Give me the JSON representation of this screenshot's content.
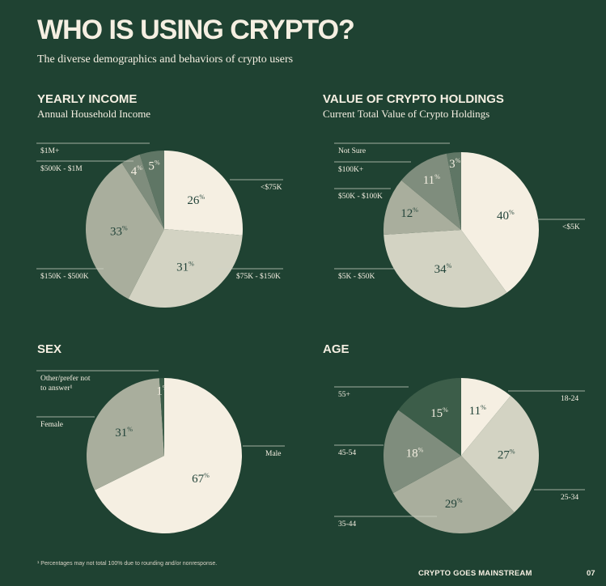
{
  "page": {
    "title": "WHO IS USING CRYPTO?",
    "subtitle": "The diverse demographics and behaviors of crypto users",
    "footnote": "¹ Percentages may not total 100% due to rounding and/or nonresponse.",
    "brand": "CRYPTO GOES MAINSTREAM",
    "page_number": "07"
  },
  "colors": {
    "background": "#1f4232",
    "cream": "#f5efe2",
    "light": "#d3d3c3",
    "mid": "#a9ae9d",
    "dark": "#7f8d7d",
    "darker": "#5f7665",
    "darkest": "#3c5d49",
    "value_text": "#23443a"
  },
  "chart_data": [
    {
      "id": "income",
      "type": "pie",
      "title": "YEARLY INCOME",
      "subtitle": "Annual Household Income",
      "slices": [
        {
          "label": "<$75K",
          "value": 26
        },
        {
          "label": "$75K - $150K",
          "value": 31
        },
        {
          "label": "$150K - $500K",
          "value": 33
        },
        {
          "label": "$500K - $1M",
          "value": 4
        },
        {
          "label": "$1M+",
          "value": 5
        }
      ],
      "value_suffix": "%"
    },
    {
      "id": "holdings",
      "type": "pie",
      "title": "VALUE OF CRYPTO HOLDINGS",
      "subtitle": "Current Total Value of Crypto Holdings",
      "slices": [
        {
          "label": "<$5K",
          "value": 40
        },
        {
          "label": "$5K - $50K",
          "value": 34
        },
        {
          "label": "$50K - $100K",
          "value": 12
        },
        {
          "label": "$100K+",
          "value": 11
        },
        {
          "label": "Not Sure",
          "value": 3
        }
      ],
      "value_suffix": "%"
    },
    {
      "id": "sex",
      "type": "pie",
      "title": "SEX",
      "subtitle": "",
      "slices": [
        {
          "label": "Male",
          "value": 67
        },
        {
          "label": "Female",
          "value": 31
        },
        {
          "label": "Other/prefer not to answer¹",
          "value": 1
        }
      ],
      "value_suffix": "%"
    },
    {
      "id": "age",
      "type": "pie",
      "title": "AGE",
      "subtitle": "",
      "slices": [
        {
          "label": "18-24",
          "value": 11
        },
        {
          "label": "25-34",
          "value": 27
        },
        {
          "label": "35-44",
          "value": 29
        },
        {
          "label": "45-54",
          "value": 18
        },
        {
          "label": "55+",
          "value": 15
        }
      ],
      "value_suffix": "%"
    }
  ]
}
